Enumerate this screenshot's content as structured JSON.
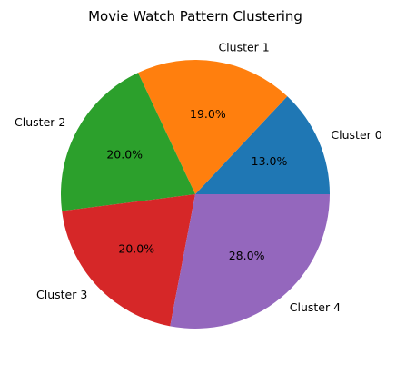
{
  "chart_data": {
    "type": "pie",
    "title": "Movie Watch Pattern Clustering",
    "slices": [
      {
        "label": "Cluster 0",
        "value": 13.0,
        "pct_label": "13.0%",
        "color": "#1f77b4"
      },
      {
        "label": "Cluster 1",
        "value": 19.0,
        "pct_label": "19.0%",
        "color": "#ff7f0e"
      },
      {
        "label": "Cluster 2",
        "value": 20.0,
        "pct_label": "20.0%",
        "color": "#2ca02c"
      },
      {
        "label": "Cluster 3",
        "value": 20.0,
        "pct_label": "20.0%",
        "color": "#d62728"
      },
      {
        "label": "Cluster 4",
        "value": 28.0,
        "pct_label": "28.0%",
        "color": "#9467bd"
      }
    ]
  }
}
